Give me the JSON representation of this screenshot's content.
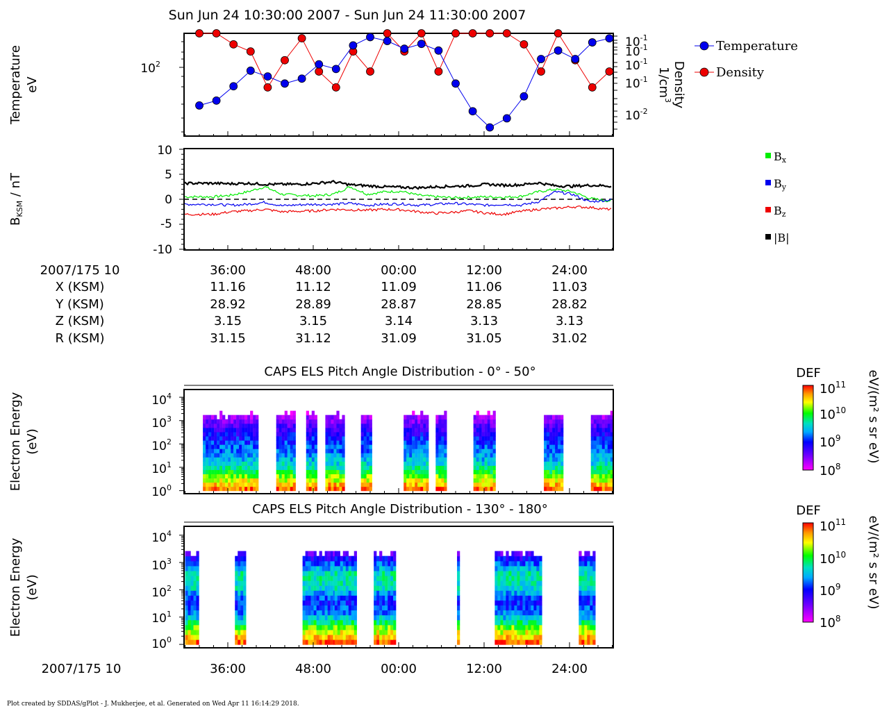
{
  "title": "Sun Jun 24 10:30:00 2007 - Sun Jun 24 11:30:00 2007",
  "footer": "Plot created by SDDAS/gPlot - J. Mukherjee, et al.  Generated on Wed Apr 11 16:14:29 2018.",
  "panel1": {
    "ylabel_line1": "Temperature",
    "ylabel_line2": "eV",
    "y_tick_left": "10",
    "y_tick_left_exp": "2",
    "right_label_line1": "Density",
    "right_label_line2": "1/cm",
    "right_label_exp": "3",
    "right_ticks": [
      {
        "base": "10",
        "exp": "-1"
      },
      {
        "base": "10",
        "exp": "-1"
      },
      {
        "base": "10",
        "exp": "-1"
      },
      {
        "base": "10",
        "exp": "-1"
      },
      {
        "base": "10",
        "exp": "-2"
      }
    ],
    "legend": [
      {
        "label": "Temperature",
        "color": "#0000ee"
      },
      {
        "label": "Density",
        "color": "#ee0000"
      }
    ]
  },
  "panel2": {
    "ylabel": "B",
    "ylabel_sub": "KSM",
    "ylabel_tail": " / nT",
    "y_ticks": [
      "10",
      "5",
      "0",
      "-5",
      "-10"
    ],
    "legend": [
      {
        "label": "B",
        "sub": "x",
        "color": "#00ee00"
      },
      {
        "label": "B",
        "sub": "y",
        "color": "#0000ee"
      },
      {
        "label": "B",
        "sub": "z",
        "color": "#ee0000"
      },
      {
        "label": "|B|",
        "sub": "",
        "color": "#000000"
      }
    ]
  },
  "ephemeris": {
    "rows": [
      {
        "label": "2007/175 10",
        "values": [
          "36:00",
          "48:00",
          "00:00",
          "12:00",
          "24:00"
        ]
      },
      {
        "label": "X (KSM)",
        "values": [
          "11.16",
          "11.12",
          "11.09",
          "11.06",
          "11.03"
        ]
      },
      {
        "label": "Y (KSM)",
        "values": [
          "28.92",
          "28.89",
          "28.87",
          "28.85",
          "28.82"
        ]
      },
      {
        "label": "Z (KSM)",
        "values": [
          "3.15",
          "3.15",
          "3.14",
          "3.13",
          "3.13"
        ]
      },
      {
        "label": "R (KSM)",
        "values": [
          "31.15",
          "31.12",
          "31.09",
          "31.05",
          "31.02"
        ]
      }
    ]
  },
  "panel3": {
    "title": "CAPS ELS Pitch Angle Distribution - 0° - 50°",
    "ylabel_line1": "Electron Energy",
    "ylabel_line2": "(eV)",
    "colorbar_title": "DEF",
    "colorbar_units": "eV/(m² s sr eV)"
  },
  "panel4": {
    "title": "CAPS ELS Pitch Angle Distribution - 130° - 180°",
    "ylabel_line1": "Electron Energy",
    "ylabel_line2": "(eV)",
    "colorbar_title": "DEF",
    "colorbar_units": "eV/(m² s sr eV)"
  },
  "spectro_y_ticks": [
    {
      "base": "10",
      "exp": "4"
    },
    {
      "base": "10",
      "exp": "3"
    },
    {
      "base": "10",
      "exp": "2"
    },
    {
      "base": "10",
      "exp": "1"
    },
    {
      "base": "10",
      "exp": "0"
    }
  ],
  "colorbar_ticks": [
    {
      "base": "10",
      "exp": "11"
    },
    {
      "base": "10",
      "exp": "10"
    },
    {
      "base": "10",
      "exp": "9"
    },
    {
      "base": "10",
      "exp": "8"
    }
  ],
  "bottom_axis": {
    "label": "2007/175 10",
    "ticks": [
      "36:00",
      "48:00",
      "00:00",
      "12:00",
      "24:00"
    ]
  },
  "chart_data": [
    {
      "type": "line",
      "title": "",
      "xlabel": "",
      "ylabel": "Temperature eV / Density 1/cm3",
      "x": [
        0,
        2.4,
        4.8,
        7.2,
        9.6,
        12,
        14.4,
        16.8,
        19.2,
        21.6,
        24,
        26.4,
        28.8,
        31.2,
        33.6,
        36,
        38.4,
        40.8,
        43.2,
        45.6,
        48,
        50.4,
        52.8,
        55.2,
        57.6
      ],
      "series": [
        {
          "name": "Temperature",
          "color": "#0000ee",
          "values": [
            30,
            35,
            55,
            90,
            75,
            60,
            70,
            110,
            95,
            200,
            260,
            230,
            180,
            210,
            170,
            60,
            25,
            15,
            20,
            40,
            130,
            170,
            130,
            220,
            250
          ]
        },
        {
          "name": "Density",
          "color": "#ee0000",
          "values": [
            0.09,
            0.08,
            0.06,
            0.05,
            0.02,
            0.04,
            0.07,
            0.03,
            0.02,
            0.05,
            0.03,
            0.08,
            0.05,
            0.09,
            0.03,
            0.08,
            0.1,
            0.12,
            0.14,
            0.06,
            0.03,
            0.09,
            0.04,
            0.02,
            0.03
          ]
        }
      ]
    },
    {
      "type": "line",
      "title": "",
      "xlabel": "",
      "ylabel": "BKSM / nT",
      "ylim": [
        -10,
        10
      ],
      "grid": false,
      "x": [
        0,
        2.4,
        4.8,
        7.2,
        9.6,
        12,
        14.4,
        16.8,
        19.2,
        21.6,
        24,
        26.4,
        28.8,
        31.2,
        33.6,
        36,
        38.4,
        40.8,
        43.2,
        45.6,
        48,
        50.4,
        52.8,
        55.2,
        57.6,
        60
      ],
      "series": [
        {
          "name": "Bx",
          "color": "#00ee00",
          "values": [
            0.5,
            0.8,
            1.5,
            2.5,
            1.0,
            0.8,
            0.7,
            1.0,
            2.5,
            1.0,
            1.5,
            1.6,
            0.8,
            0.5,
            0.3,
            0.4,
            0.5,
            0.4,
            0.6,
            1.5,
            2.0,
            1.5,
            0.2,
            -0.3,
            0.0,
            0.5
          ]
        },
        {
          "name": "By",
          "color": "#0000ee",
          "values": [
            -1.0,
            -1.2,
            -1.0,
            -0.6,
            -1.3,
            -1.1,
            -1.0,
            -1.0,
            -0.8,
            -1.2,
            -1.0,
            -0.9,
            -1.2,
            -1.0,
            -0.8,
            -1.0,
            -1.2,
            -1.0,
            -1.2,
            -0.5,
            1.5,
            1.0,
            -0.5,
            -0.2,
            0.3,
            0.0
          ]
        },
        {
          "name": "Bz",
          "color": "#ee0000",
          "values": [
            -3.0,
            -2.5,
            -2.3,
            -2.0,
            -2.5,
            -2.4,
            -2.3,
            -2.0,
            -2.1,
            -2.2,
            -2.0,
            -2.1,
            -2.5,
            -2.8,
            -2.6,
            -2.3,
            -2.8,
            -3.0,
            -2.4,
            -2.0,
            -1.8,
            -1.5,
            -1.6,
            -2.0,
            -1.8,
            -1.7
          ]
        },
        {
          "name": "|B|",
          "color": "#000000",
          "values": [
            3.2,
            3.1,
            3.2,
            3.0,
            3.0,
            3.0,
            3.2,
            3.5,
            2.9,
            2.7,
            2.5,
            2.4,
            2.3,
            2.5,
            2.6,
            2.7,
            3.0,
            2.8,
            2.9,
            3.3,
            2.7,
            2.6,
            2.8,
            2.7,
            2.3,
            2.2
          ]
        }
      ]
    },
    {
      "type": "heatmap",
      "title": "CAPS ELS Pitch Angle Distribution - 0° - 50°",
      "ylabel": "Electron Energy (eV)",
      "colorbar_label": "DEF eV/(m² s sr eV)",
      "colorbar_range_log10": [
        8,
        11
      ],
      "x_data_intervals": [
        [
          2.5,
          10.3
        ],
        [
          12.8,
          15.5
        ],
        [
          17.0,
          18.2
        ],
        [
          19.7,
          22.3
        ],
        [
          24.7,
          26.0
        ],
        [
          30.7,
          34.2
        ],
        [
          35.2,
          36.4
        ],
        [
          40.5,
          43.4
        ],
        [
          50.4,
          53.0
        ],
        [
          57.0,
          60.0
        ]
      ],
      "data_flux_log10": [
        {
          "energy_log10": 0.0,
          "level": 10.8
        },
        {
          "energy_log10": 0.5,
          "level": 10.2
        },
        {
          "energy_log10": 1.0,
          "level": 9.6
        },
        {
          "energy_log10": 1.5,
          "level": 9.3
        },
        {
          "energy_log10": 2.0,
          "level": 9.1
        },
        {
          "energy_log10": 2.5,
          "level": 8.8
        },
        {
          "energy_log10": 3.0,
          "level": 8.4
        },
        {
          "energy_log10": 3.3,
          "level": 8.1
        }
      ]
    },
    {
      "type": "heatmap",
      "title": "CAPS ELS Pitch Angle Distribution - 130° - 180°",
      "ylabel": "Electron Energy (eV)",
      "colorbar_label": "DEF eV/(m² s sr eV)",
      "colorbar_range_log10": [
        8,
        11
      ],
      "x_data_intervals": [
        [
          0.0,
          1.8
        ],
        [
          7.0,
          8.2
        ],
        [
          16.5,
          21.0
        ],
        [
          21.0,
          23.8
        ],
        [
          26.5,
          29.5
        ],
        [
          38.2,
          38.4
        ],
        [
          43.5,
          50.0
        ],
        [
          55.3,
          57.3
        ]
      ],
      "data_flux_log10": [
        {
          "energy_log10": 0.0,
          "level": 10.8
        },
        {
          "energy_log10": 0.5,
          "level": 10.2
        },
        {
          "energy_log10": 1.0,
          "level": 9.3
        },
        {
          "energy_log10": 1.5,
          "level": 9.0
        },
        {
          "energy_log10": 2.0,
          "level": 9.6
        },
        {
          "energy_log10": 2.5,
          "level": 9.7
        },
        {
          "energy_log10": 3.0,
          "level": 9.0
        },
        {
          "energy_log10": 3.4,
          "level": 8.3
        }
      ]
    }
  ]
}
